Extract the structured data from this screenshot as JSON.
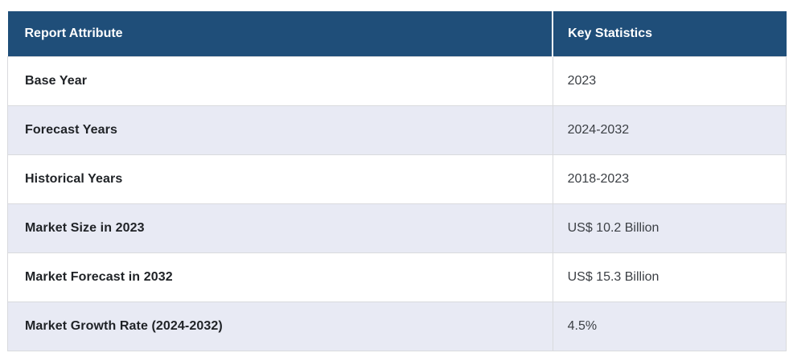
{
  "table": {
    "columns": [
      {
        "label": "Report Attribute"
      },
      {
        "label": "Key Statistics"
      }
    ],
    "rows": [
      {
        "attribute": "Base Year",
        "value": "2023"
      },
      {
        "attribute": "Forecast Years",
        "value": "2024-2032"
      },
      {
        "attribute": "Historical Years",
        "value": "2018-2023"
      },
      {
        "attribute": "Market Size in 2023",
        "value": "US$ 10.2 Billion"
      },
      {
        "attribute": "Market Forecast in 2032",
        "value": "US$ 15.3 Billion"
      },
      {
        "attribute": "Market Growth Rate (2024-2032)",
        "value": "4.5%"
      }
    ],
    "colors": {
      "header_bg": "#1f4e79",
      "header_text": "#ffffff",
      "row_bg": "#ffffff",
      "row_alt_bg": "#e8eaf4",
      "border": "#d9dadd",
      "attr_text": "#1f2226",
      "value_text": "#3b3f44"
    }
  }
}
